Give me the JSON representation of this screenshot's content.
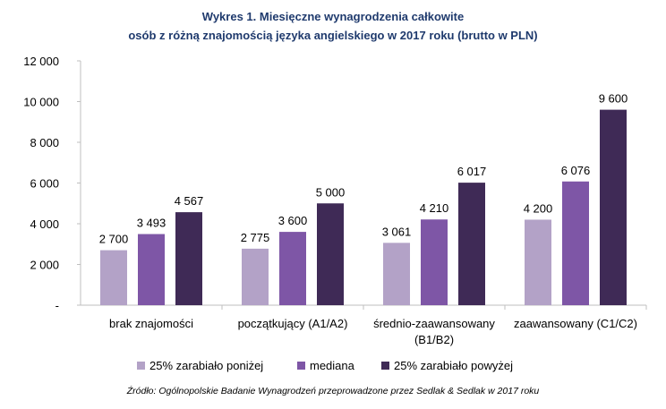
{
  "chart_data": {
    "type": "bar",
    "title_line1": "Wykres 1. Miesięczne wynagrodzenia całkowite",
    "title_line2": "osób z różną znajomością języka angielskiego w 2017 roku (brutto w PLN)",
    "categories": [
      [
        "brak znajomości"
      ],
      [
        "początkujący (A1/A2)"
      ],
      [
        "średnio-zaawansowany",
        "(B1/B2)"
      ],
      [
        "zaawansowany (C1/C2)"
      ]
    ],
    "series": [
      {
        "name": "25% zarabiało poniżej",
        "color": "#b3a2c7",
        "values": [
          2700,
          2775,
          3061,
          4200
        ],
        "labels": [
          "2 700",
          "2 775",
          "3 061",
          "4 200"
        ]
      },
      {
        "name": "mediana",
        "color": "#7e56a6",
        "values": [
          3493,
          3600,
          4210,
          6076
        ],
        "labels": [
          "3 493",
          "3 600",
          "4 210",
          "6 076"
        ]
      },
      {
        "name": "25% zarabiało powyżej",
        "color": "#3f2a56",
        "values": [
          4567,
          5000,
          6017,
          9600
        ],
        "labels": [
          "4 567",
          "5 000",
          "6 017",
          "9 600"
        ]
      }
    ],
    "yticks": [
      {
        "value": 0,
        "label": "-"
      },
      {
        "value": 2000,
        "label": "2 000"
      },
      {
        "value": 4000,
        "label": "4 000"
      },
      {
        "value": 6000,
        "label": "6 000"
      },
      {
        "value": 8000,
        "label": "8 000"
      },
      {
        "value": 10000,
        "label": "10 000"
      },
      {
        "value": 12000,
        "label": "12 000"
      }
    ],
    "ylim": [
      0,
      12000
    ],
    "grid": false,
    "legend_position": "bottom"
  },
  "source_note": "Źródło: Ogólnopolskie Badanie Wynagrodzeń przeprowadzone przez Sedlak & Sedlak w 2017 roku"
}
